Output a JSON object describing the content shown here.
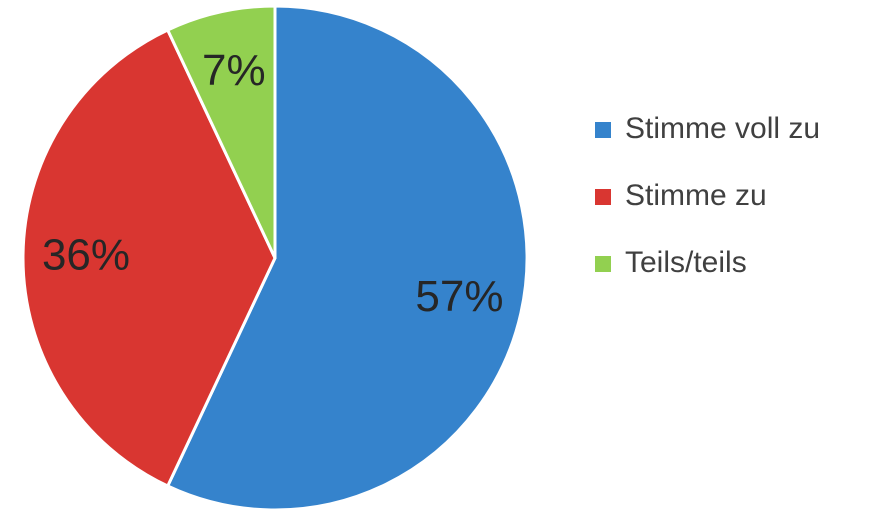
{
  "chart_data": {
    "type": "pie",
    "categories": [
      "Stimme voll zu",
      "Stimme zu",
      "Teils/teils"
    ],
    "values": [
      57,
      36,
      7
    ],
    "value_labels": [
      "57%",
      "36%",
      "7%"
    ],
    "colors": [
      "#3583cc",
      "#d93631",
      "#92d050"
    ],
    "legend": "right"
  }
}
